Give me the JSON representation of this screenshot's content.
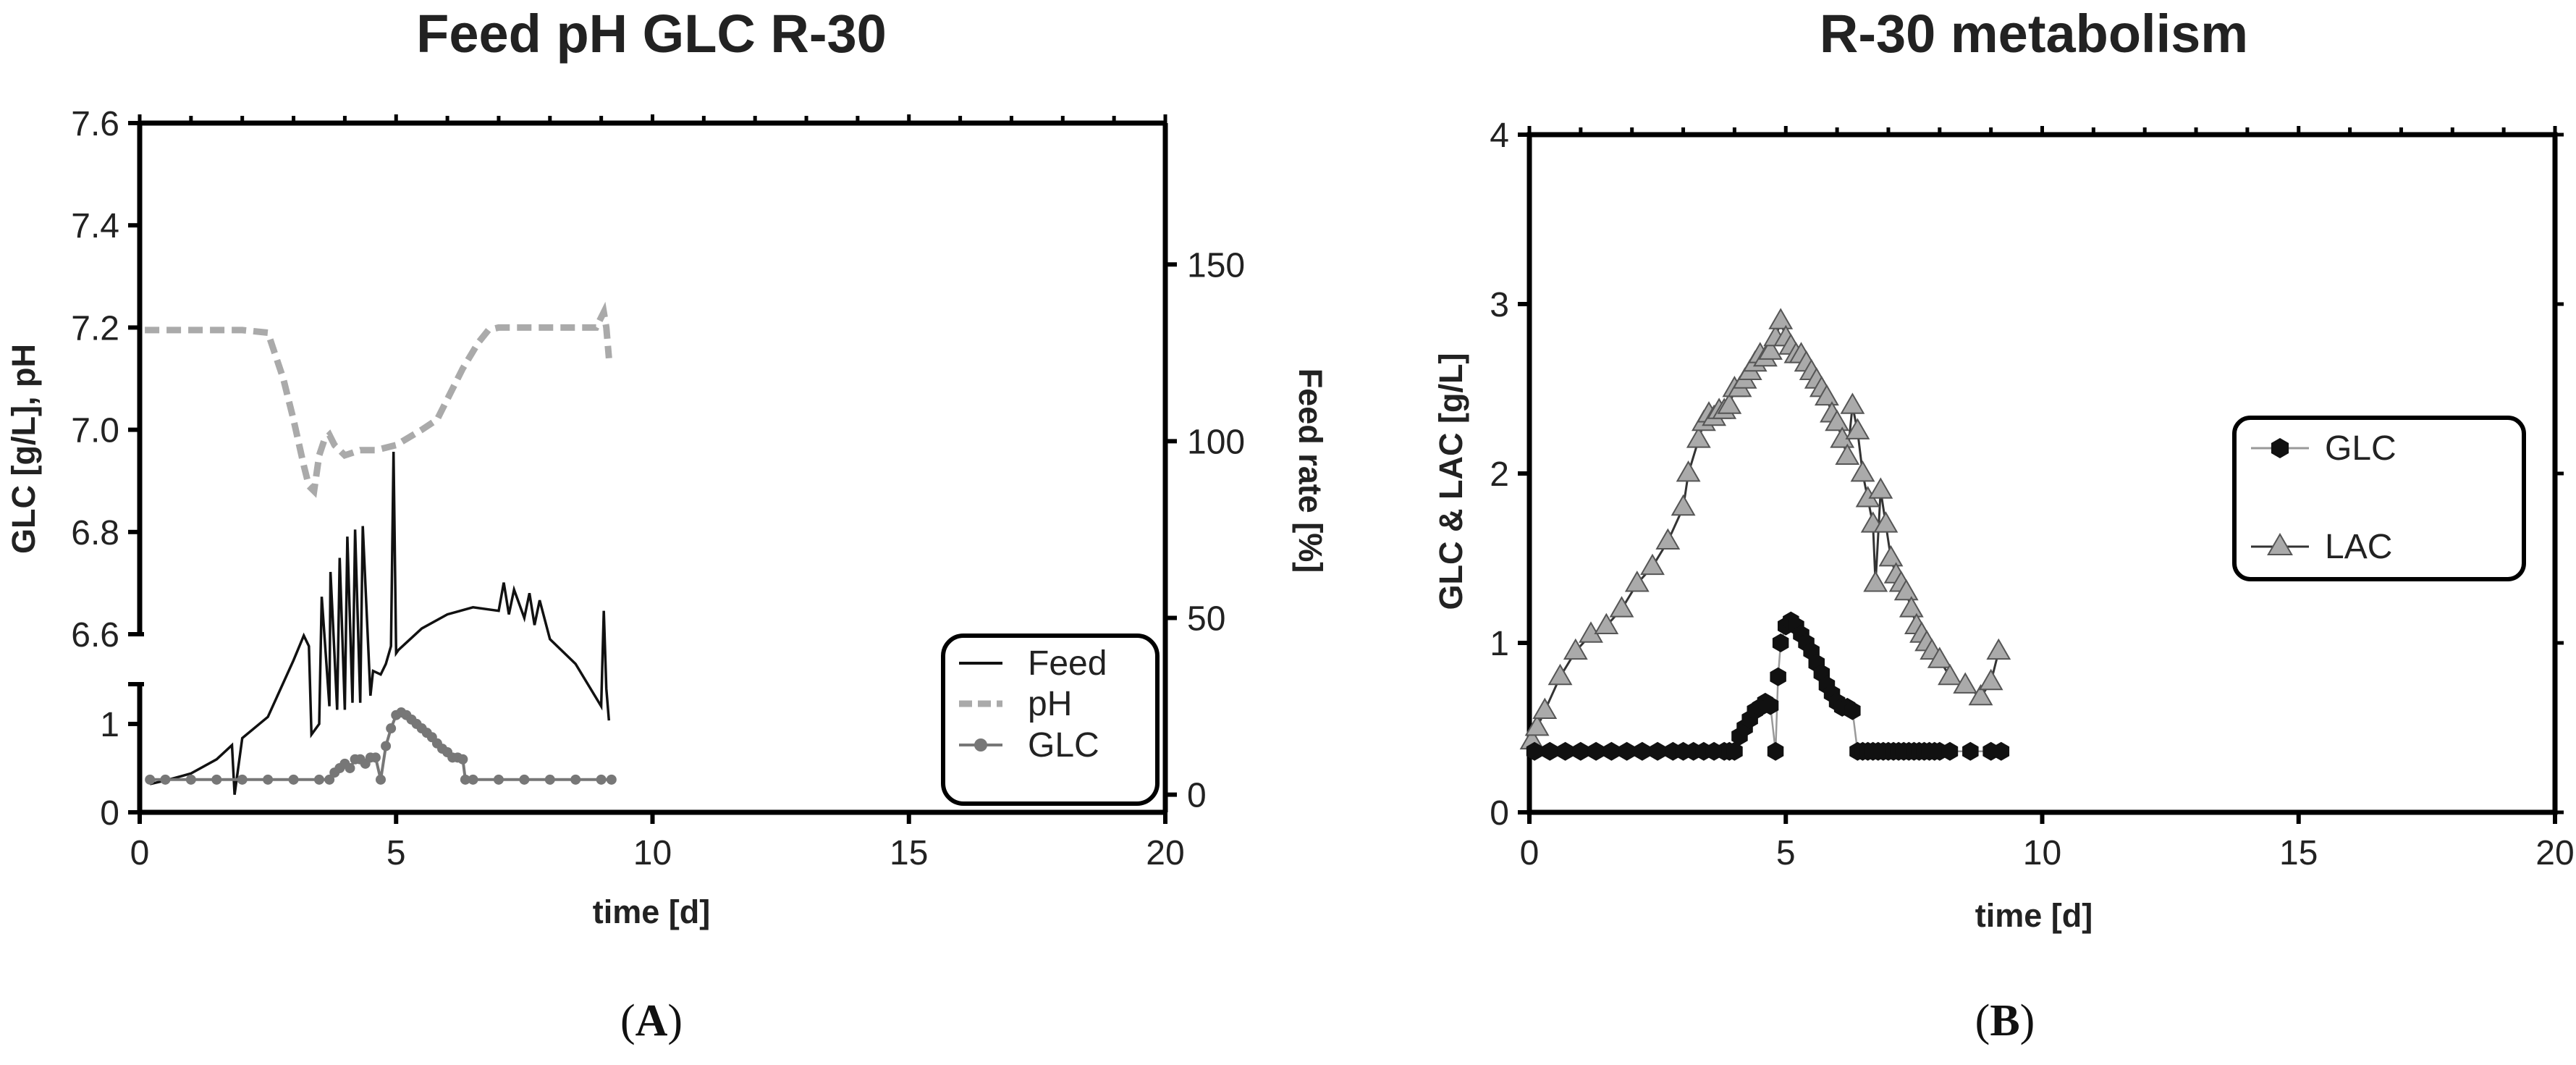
{
  "panels": [
    {
      "label_open": "(",
      "letter": "A",
      "label_close": ")",
      "chart_data": {
        "type": "line",
        "title": "Feed pH GLC R-30",
        "xlabel": "time [d]",
        "ylabel": "GLC [g/L], pH",
        "y2label": "Feed rate [%]",
        "xlim": [
          0,
          20
        ],
        "x_ticks": [
          "0",
          "5",
          "10",
          "15",
          "20"
        ],
        "y_axis": {
          "broken": true,
          "lower_segment": {
            "range": [
              0,
              1.45
            ],
            "ticks": [
              "0",
              "1"
            ]
          },
          "upper_segment": {
            "range": [
              6.6,
              7.6
            ],
            "ticks": [
              "6.6",
              "6.8",
              "7.0",
              "7.2",
              "7.4",
              "7.6"
            ]
          }
        },
        "y2lim": [
          -5,
          190
        ],
        "y2_ticks": [
          "0",
          "50",
          "100",
          "150"
        ],
        "legend": {
          "position": "bottom-right",
          "entries": [
            "Feed",
            "pH",
            "GLC"
          ]
        },
        "series": [
          {
            "name": "pH",
            "axis": "left",
            "style": "dashed",
            "color": "#aaaaaa",
            "x": [
              0.1,
              0.5,
              1.0,
              1.5,
              2.0,
              2.5,
              2.8,
              3.0,
              3.2,
              3.3,
              3.4,
              3.5,
              3.6,
              3.7,
              3.8,
              3.9,
              4.0,
              4.3,
              4.6,
              5.0,
              5.5,
              5.8,
              6.0,
              6.3,
              6.6,
              6.8,
              7.0,
              7.5,
              8.0,
              8.5,
              8.9,
              9.05,
              9.1,
              9.15
            ],
            "y": [
              7.195,
              7.195,
              7.195,
              7.195,
              7.195,
              7.19,
              7.1,
              7.02,
              6.93,
              6.89,
              6.88,
              6.95,
              6.98,
              6.99,
              6.97,
              6.96,
              6.95,
              6.96,
              6.96,
              6.97,
              7.0,
              7.02,
              7.06,
              7.12,
              7.17,
              7.195,
              7.2,
              7.2,
              7.2,
              7.2,
              7.2,
              7.23,
              7.2,
              7.14
            ]
          },
          {
            "name": "Feed",
            "axis": "right",
            "style": "solid",
            "color": "#111111",
            "x": [
              0.2,
              0.5,
              1.0,
              1.5,
              1.8,
              1.85,
              2.0,
              2.5,
              3.0,
              3.2,
              3.3,
              3.35,
              3.5,
              3.55,
              3.7,
              3.72,
              3.85,
              3.9,
              4.0,
              4.05,
              4.15,
              4.2,
              4.3,
              4.35,
              4.5,
              4.55,
              4.7,
              4.8,
              4.9,
              4.95,
              5.0,
              5.05,
              5.2,
              5.5,
              6.0,
              6.5,
              7.0,
              7.1,
              7.2,
              7.3,
              7.5,
              7.6,
              7.7,
              7.8,
              8.0,
              8.5,
              9.0,
              9.05,
              9.1,
              9.15
            ],
            "y": [
              3,
              4,
              6,
              10,
              14,
              0,
              16,
              22,
              38,
              45,
              42,
              17,
              20,
              56,
              25,
              63,
              24,
              67,
              24,
              73,
              26,
              75,
              26,
              76,
              28,
              35,
              34,
              37,
              42,
              97,
              40,
              41,
              43,
              47,
              51,
              53,
              52,
              60,
              51,
              58,
              50,
              57,
              48,
              55,
              44,
              37,
              25,
              52,
              30,
              21
            ]
          },
          {
            "name": "GLC",
            "axis": "left",
            "style": "line-with-markers",
            "color": "#777777",
            "x": [
              0.2,
              0.5,
              1.0,
              1.5,
              2.0,
              2.5,
              3.0,
              3.5,
              3.7,
              3.8,
              3.9,
              4.0,
              4.1,
              4.2,
              4.3,
              4.4,
              4.5,
              4.6,
              4.7,
              4.8,
              4.9,
              5.0,
              5.1,
              5.2,
              5.3,
              5.4,
              5.5,
              5.6,
              5.7,
              5.8,
              5.9,
              6.0,
              6.1,
              6.2,
              6.3,
              6.35,
              6.5,
              7.0,
              7.5,
              8.0,
              8.5,
              9.0,
              9.2
            ],
            "y": [
              0.37,
              0.37,
              0.37,
              0.37,
              0.37,
              0.37,
              0.37,
              0.37,
              0.37,
              0.45,
              0.5,
              0.55,
              0.5,
              0.6,
              0.6,
              0.55,
              0.62,
              0.62,
              0.37,
              0.75,
              0.95,
              1.1,
              1.13,
              1.1,
              1.05,
              1.0,
              0.95,
              0.9,
              0.85,
              0.78,
              0.72,
              0.68,
              0.62,
              0.62,
              0.6,
              0.37,
              0.37,
              0.37,
              0.37,
              0.37,
              0.37,
              0.37,
              0.37
            ]
          }
        ]
      }
    },
    {
      "label_open": "(",
      "letter": "B",
      "label_close": ")",
      "chart_data": {
        "type": "line",
        "title": "R-30 metabolism",
        "xlabel": "time [d]",
        "ylabel": "GLC & LAC [g/L]",
        "xlim": [
          0,
          20
        ],
        "ylim": [
          0,
          4
        ],
        "x_ticks": [
          "0",
          "5",
          "10",
          "15",
          "20"
        ],
        "y_ticks": [
          "0",
          "1",
          "2",
          "3",
          "4"
        ],
        "legend": {
          "position": "right",
          "entries": [
            "GLC",
            "LAC"
          ]
        },
        "series": [
          {
            "name": "GLC",
            "marker": "hexagon",
            "color": "#111111",
            "x": [
              0.1,
              0.4,
              0.7,
              1.0,
              1.3,
              1.6,
              1.9,
              2.2,
              2.5,
              2.8,
              3.0,
              3.2,
              3.4,
              3.6,
              3.8,
              3.9,
              4.0,
              4.1,
              4.2,
              4.3,
              4.4,
              4.5,
              4.6,
              4.7,
              4.8,
              4.85,
              4.9,
              5.0,
              5.1,
              5.2,
              5.3,
              5.4,
              5.5,
              5.6,
              5.7,
              5.8,
              5.9,
              6.0,
              6.1,
              6.2,
              6.3,
              6.4,
              6.5,
              6.6,
              6.7,
              6.8,
              6.9,
              7.0,
              7.1,
              7.2,
              7.3,
              7.4,
              7.5,
              7.6,
              7.7,
              7.8,
              7.9,
              8.0,
              8.2,
              8.6,
              9.0,
              9.2
            ],
            "y": [
              0.36,
              0.36,
              0.36,
              0.36,
              0.36,
              0.36,
              0.36,
              0.36,
              0.36,
              0.36,
              0.36,
              0.36,
              0.36,
              0.36,
              0.36,
              0.36,
              0.36,
              0.45,
              0.5,
              0.55,
              0.6,
              0.62,
              0.65,
              0.63,
              0.36,
              0.8,
              1.0,
              1.1,
              1.13,
              1.1,
              1.05,
              1.0,
              0.95,
              0.88,
              0.82,
              0.75,
              0.7,
              0.65,
              0.62,
              0.62,
              0.6,
              0.36,
              0.36,
              0.36,
              0.36,
              0.36,
              0.36,
              0.36,
              0.36,
              0.36,
              0.36,
              0.36,
              0.36,
              0.36,
              0.36,
              0.36,
              0.36,
              0.36,
              0.36,
              0.36,
              0.36,
              0.36
            ]
          },
          {
            "name": "LAC",
            "marker": "triangle",
            "color": "#aaaaaa",
            "x": [
              0.05,
              0.15,
              0.3,
              0.6,
              0.9,
              1.2,
              1.5,
              1.8,
              2.1,
              2.4,
              2.7,
              3.0,
              3.1,
              3.3,
              3.4,
              3.5,
              3.6,
              3.7,
              3.8,
              3.9,
              4.0,
              4.1,
              4.2,
              4.3,
              4.4,
              4.5,
              4.6,
              4.7,
              4.8,
              4.9,
              5.0,
              5.1,
              5.2,
              5.3,
              5.4,
              5.5,
              5.6,
              5.7,
              5.8,
              5.9,
              6.0,
              6.1,
              6.2,
              6.3,
              6.4,
              6.5,
              6.6,
              6.7,
              6.75,
              6.85,
              6.95,
              7.05,
              7.15,
              7.25,
              7.35,
              7.45,
              7.55,
              7.65,
              7.75,
              7.85,
              8.0,
              8.2,
              8.5,
              8.8,
              9.0,
              9.15
            ],
            "y": [
              0.42,
              0.5,
              0.6,
              0.8,
              0.95,
              1.05,
              1.1,
              1.2,
              1.35,
              1.45,
              1.6,
              1.8,
              2.0,
              2.2,
              2.3,
              2.35,
              2.33,
              2.37,
              2.37,
              2.4,
              2.5,
              2.5,
              2.55,
              2.6,
              2.65,
              2.7,
              2.68,
              2.72,
              2.8,
              2.9,
              2.8,
              2.75,
              2.7,
              2.7,
              2.65,
              2.6,
              2.55,
              2.5,
              2.45,
              2.35,
              2.3,
              2.2,
              2.1,
              2.4,
              2.25,
              2.0,
              1.85,
              1.7,
              1.35,
              1.9,
              1.7,
              1.5,
              1.4,
              1.35,
              1.3,
              1.2,
              1.1,
              1.05,
              1.0,
              0.95,
              0.9,
              0.8,
              0.75,
              0.68,
              0.77,
              0.95
            ]
          }
        ]
      }
    }
  ]
}
